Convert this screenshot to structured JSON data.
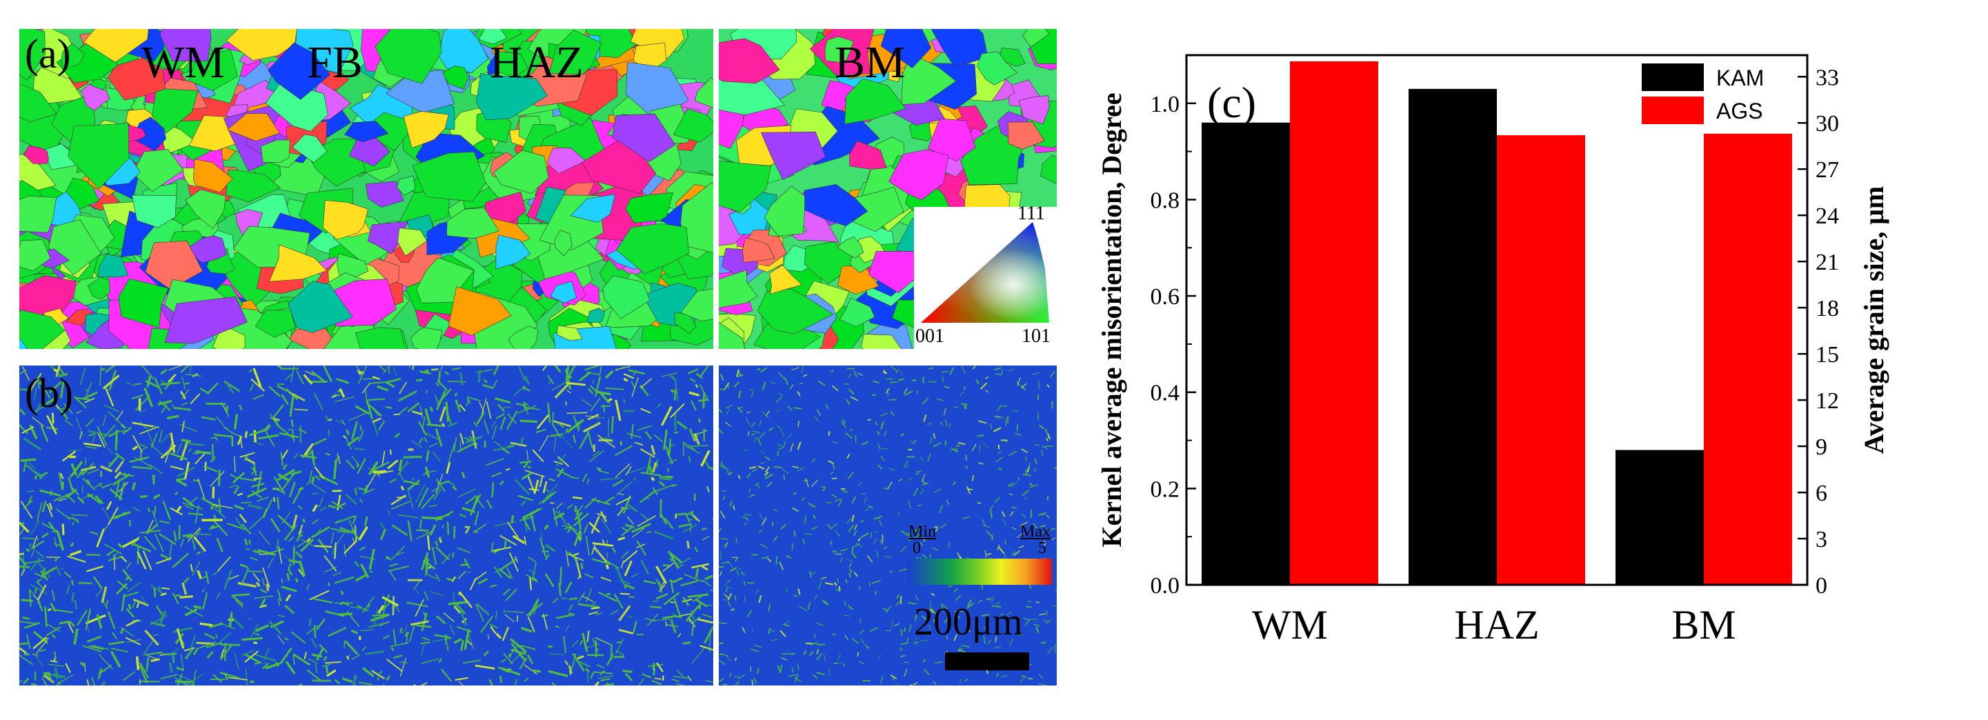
{
  "panels": {
    "a": {
      "label": "(a)",
      "zones": [
        "WM",
        "FB",
        "HAZ",
        "BM"
      ]
    },
    "b": {
      "label": "(b)"
    },
    "ipf_legend": {
      "top": "111",
      "left": "001",
      "right": "101"
    },
    "kam_legend": {
      "min_label": "Min",
      "max_label": "Max",
      "min_value": "0",
      "max_value": "5"
    },
    "scale_bar": {
      "text": "200μm"
    }
  },
  "chart_data": {
    "type": "bar",
    "panel_label": "(c)",
    "categories": [
      "WM",
      "HAZ",
      "BM"
    ],
    "series": [
      {
        "name": "KAM",
        "axis": "left",
        "color": "#000000",
        "values": [
          0.96,
          1.03,
          0.28
        ]
      },
      {
        "name": "AGS",
        "axis": "right",
        "color": "#ff0000",
        "values": [
          34.0,
          29.2,
          29.3
        ]
      }
    ],
    "ylabel": "Kernel average misorientation, Degree",
    "y2label": "Average grain size, μm",
    "ylim": [
      0,
      1.1
    ],
    "y2lim": [
      0,
      34.4
    ],
    "yticks": [
      "0.0",
      "0.2",
      "0.4",
      "0.6",
      "0.8",
      "1.0"
    ],
    "y2ticks": [
      "0",
      "3",
      "6",
      "9",
      "12",
      "15",
      "18",
      "21",
      "24",
      "27",
      "30",
      "33"
    ],
    "legend_position": "top-right"
  }
}
